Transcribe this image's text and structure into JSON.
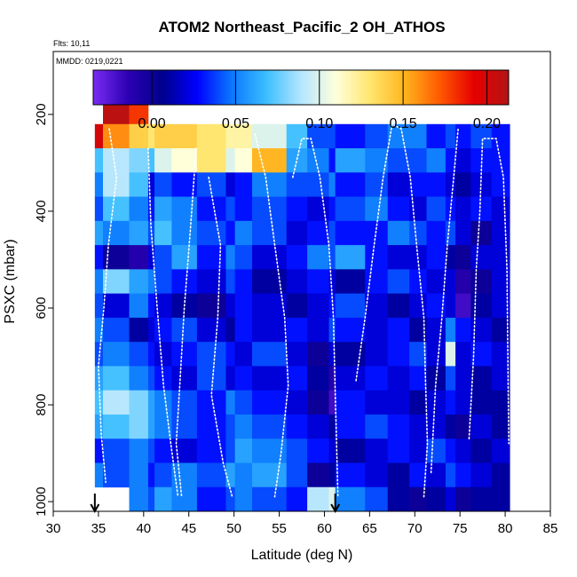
{
  "chart_data": {
    "type": "heatmap",
    "title": "ATOM2 Northeast_Pacific_2 OH_ATHOS",
    "flights_note": "Flts: 10,11",
    "date_note": "MMDD: 0219,0221",
    "xlabel": "Latitude (deg N)",
    "ylabel": "PSXC (mbar)",
    "xlim": [
      30,
      85
    ],
    "ylim": [
      1020,
      70
    ],
    "x_ticks": [
      30,
      35,
      40,
      45,
      50,
      55,
      60,
      65,
      70,
      75,
      80,
      85
    ],
    "y_ticks": [
      200,
      400,
      600,
      800,
      1000
    ],
    "colorbar": {
      "range": [
        -0.035,
        0.213
      ],
      "ticks": [
        0.0,
        0.05,
        0.1,
        0.15,
        0.2
      ],
      "tick_labels": [
        "0.00",
        "0.05",
        "0.10",
        "0.15",
        "0.20"
      ],
      "colors": [
        "#7a2cf2",
        "#2c00b4",
        "#00008c",
        "#0000ff",
        "#0a78ff",
        "#3cbeff",
        "#b4e6ff",
        "#ffffdc",
        "#ffe66e",
        "#ffb41e",
        "#ff5a00",
        "#e60000",
        "#b41414"
      ]
    },
    "arrows_latitude": [
      34.6,
      61.2
    ],
    "column_bounds": [
      34.6,
      35.5,
      38.4,
      40.5,
      41.2,
      43.1,
      45.9,
      49.1,
      50.1,
      52.0,
      55.8,
      58.1,
      60.5,
      61.2,
      64.5,
      67.0,
      69.4,
      71.3,
      73.4,
      74.5,
      76.2,
      78.5,
      80.5
    ],
    "pressure_levels": [
      160,
      220,
      270,
      320,
      370,
      420,
      470,
      520,
      570,
      620,
      670,
      720,
      770,
      820,
      870,
      920,
      970,
      1020
    ],
    "values": [
      [
        null,
        0.21,
        0.18,
        null,
        null,
        null,
        null,
        null,
        null,
        null,
        null,
        null,
        null,
        null,
        null,
        null,
        null,
        null,
        null,
        null,
        null,
        null
      ],
      [
        0.2,
        0.16,
        0.14,
        0.13,
        0.14,
        0.14,
        0.13,
        0.12,
        0.12,
        0.1,
        0.07,
        0.04,
        0.04,
        0.03,
        0.04,
        0.05,
        0.05,
        0.03,
        0.04,
        0.03,
        0.04,
        0.03
      ],
      [
        0.07,
        0.09,
        0.08,
        0.07,
        0.1,
        0.11,
        0.13,
        0.1,
        0.11,
        0.15,
        0.06,
        0.05,
        0.03,
        0.06,
        0.05,
        0.04,
        0.04,
        0.05,
        0.03,
        0.02,
        0.03,
        0.03
      ],
      [
        0.05,
        0.09,
        0.07,
        0.02,
        0.04,
        0.03,
        0.04,
        0.02,
        0.03,
        0.05,
        0.04,
        0.04,
        0.05,
        0.03,
        0.04,
        0.02,
        0.03,
        0.03,
        0.02,
        0.01,
        0.02,
        0.03
      ],
      [
        0.04,
        0.07,
        0.05,
        0.03,
        0.06,
        0.05,
        0.03,
        0.04,
        0.03,
        0.04,
        0.03,
        0.02,
        0.03,
        0.04,
        0.05,
        0.03,
        0.02,
        0.04,
        0.03,
        0.02,
        0.03,
        0.02
      ],
      [
        0.06,
        0.05,
        0.06,
        0.04,
        0.07,
        0.05,
        0.04,
        0.03,
        0.05,
        0.04,
        0.02,
        0.03,
        0.04,
        0.03,
        0.03,
        0.05,
        0.04,
        0.03,
        0.04,
        0.02,
        0.0,
        0.02
      ],
      [
        0.03,
        0.0,
        -0.01,
        0.02,
        0.04,
        0.06,
        0.03,
        0.05,
        0.04,
        0.02,
        0.03,
        0.05,
        0.04,
        0.06,
        0.03,
        0.02,
        0.02,
        0.03,
        0.01,
        0.0,
        0.02,
        0.02
      ],
      [
        0.05,
        0.08,
        0.06,
        0.05,
        0.04,
        0.03,
        0.02,
        0.04,
        0.03,
        0.01,
        0.02,
        0.03,
        0.02,
        0.01,
        0.03,
        0.04,
        0.03,
        0.02,
        0.02,
        -0.01,
        0.0,
        0.02
      ],
      [
        0.04,
        0.02,
        0.05,
        0.03,
        0.02,
        0.01,
        0.0,
        0.02,
        0.03,
        0.02,
        0.01,
        0.02,
        0.03,
        0.04,
        0.02,
        0.01,
        0.02,
        0.03,
        0.02,
        -0.02,
        0.01,
        0.02
      ],
      [
        0.05,
        0.04,
        0.01,
        0.02,
        0.03,
        0.04,
        0.02,
        0.01,
        0.03,
        0.02,
        0.03,
        0.02,
        0.04,
        0.03,
        0.02,
        0.03,
        0.01,
        0.02,
        0.05,
        0.03,
        0.02,
        0.01
      ],
      [
        0.04,
        0.05,
        0.04,
        0.03,
        0.02,
        0.03,
        0.04,
        0.03,
        0.02,
        0.04,
        0.02,
        0.0,
        0.02,
        0.01,
        0.02,
        0.03,
        0.04,
        0.02,
        0.1,
        0.02,
        0.03,
        0.02
      ],
      [
        0.06,
        0.07,
        0.05,
        0.04,
        0.03,
        0.02,
        0.04,
        0.02,
        0.03,
        0.02,
        0.03,
        0.01,
        -0.01,
        0.02,
        0.03,
        0.02,
        0.03,
        0.01,
        0.04,
        0.02,
        0.01,
        0.02
      ],
      [
        0.07,
        0.09,
        0.08,
        0.06,
        0.05,
        0.04,
        0.03,
        0.05,
        0.04,
        0.03,
        0.02,
        0.0,
        -0.02,
        0.03,
        0.02,
        0.02,
        0.01,
        0.02,
        0.03,
        0.02,
        0.01,
        0.01
      ],
      [
        0.06,
        0.07,
        0.08,
        0.06,
        0.05,
        0.04,
        0.03,
        0.04,
        0.05,
        0.04,
        0.03,
        0.02,
        0.01,
        0.03,
        0.04,
        0.03,
        0.02,
        0.02,
        0.01,
        0.0,
        0.02,
        0.01
      ],
      [
        0.03,
        0.04,
        0.05,
        0.04,
        0.03,
        0.02,
        0.03,
        0.04,
        0.06,
        0.05,
        0.04,
        0.03,
        0.02,
        0.01,
        0.02,
        0.03,
        0.02,
        0.04,
        0.03,
        0.02,
        0.01,
        0.02
      ],
      [
        0.05,
        0.04,
        0.05,
        0.03,
        0.04,
        0.05,
        0.04,
        0.06,
        0.05,
        0.06,
        0.04,
        0.0,
        0.01,
        0.03,
        0.02,
        0.01,
        0.03,
        0.02,
        0.04,
        0.03,
        0.02,
        0.01
      ],
      [
        null,
        null,
        0.05,
        0.04,
        0.06,
        0.05,
        0.03,
        0.04,
        0.05,
        0.04,
        0.03,
        0.09,
        0.1,
        0.05,
        0.04,
        0.01,
        0.0,
        0.01,
        0.02,
        0.0,
        0.01,
        0.01
      ]
    ],
    "flight_tracks": [
      [
        [
          36.2,
          230
        ],
        [
          37.0,
          330
        ],
        [
          36.1,
          470
        ],
        [
          35.6,
          600
        ],
        [
          35.0,
          720
        ],
        [
          35.3,
          860
        ],
        [
          35.8,
          960
        ]
      ],
      [
        [
          40.5,
          270
        ],
        [
          40.8,
          430
        ],
        [
          41.5,
          600
        ],
        [
          42.2,
          760
        ],
        [
          43.0,
          880
        ],
        [
          43.8,
          990
        ]
      ],
      [
        [
          45.8,
          270
        ],
        [
          45.2,
          430
        ],
        [
          44.5,
          600
        ],
        [
          44.0,
          760
        ],
        [
          43.6,
          880
        ],
        [
          44.2,
          990
        ]
      ],
      [
        [
          47.2,
          330
        ],
        [
          48.5,
          470
        ],
        [
          48.2,
          620
        ],
        [
          47.5,
          780
        ],
        [
          48.8,
          920
        ],
        [
          49.8,
          990
        ]
      ],
      [
        [
          52.3,
          240
        ],
        [
          53.5,
          330
        ],
        [
          54.5,
          470
        ],
        [
          55.6,
          620
        ],
        [
          56.0,
          760
        ],
        [
          55.2,
          900
        ],
        [
          54.5,
          990
        ]
      ],
      [
        [
          56.5,
          330
        ],
        [
          57.5,
          250
        ],
        [
          58.5,
          250
        ],
        [
          59.5,
          330
        ],
        [
          60.5,
          470
        ],
        [
          61.0,
          620
        ],
        [
          61.2,
          780
        ],
        [
          61.5,
          990
        ]
      ],
      [
        [
          63.5,
          750
        ],
        [
          64.5,
          620
        ],
        [
          65.5,
          470
        ],
        [
          66.5,
          330
        ],
        [
          67.5,
          220
        ],
        [
          68.5,
          230
        ],
        [
          69.5,
          330
        ],
        [
          70.2,
          470
        ],
        [
          71.0,
          620
        ],
        [
          71.2,
          760
        ],
        [
          71.4,
          880
        ],
        [
          71.0,
          990
        ]
      ],
      [
        [
          71.8,
          940
        ],
        [
          72.3,
          760
        ],
        [
          73.0,
          620
        ],
        [
          73.6,
          470
        ],
        [
          74.3,
          330
        ],
        [
          74.8,
          230
        ]
      ],
      [
        [
          76.0,
          870
        ],
        [
          76.5,
          700
        ],
        [
          76.8,
          520
        ],
        [
          77.2,
          400
        ],
        [
          77.5,
          250
        ],
        [
          79.0,
          250
        ],
        [
          79.8,
          330
        ],
        [
          80.2,
          520
        ],
        [
          80.3,
          700
        ],
        [
          80.4,
          880
        ]
      ]
    ]
  }
}
